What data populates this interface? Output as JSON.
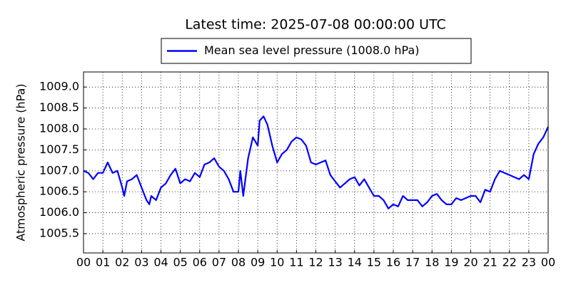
{
  "chart_data": {
    "type": "line",
    "title": "Latest time: 2025-07-08 00:00:00 UTC",
    "ylabel": "Atmospheric pressure (hPa)",
    "grid": true,
    "legend": "upper center",
    "x": [
      0,
      0.25,
      0.5,
      0.75,
      1,
      1.25,
      1.5,
      1.75,
      2,
      2.1,
      2.25,
      2.5,
      2.75,
      3,
      3.25,
      3.4,
      3.5,
      3.75,
      4,
      4.25,
      4.5,
      4.75,
      5,
      5.25,
      5.5,
      5.75,
      6,
      6.25,
      6.5,
      6.75,
      7,
      7.25,
      7.5,
      7.75,
      8,
      8.1,
      8.25,
      8.5,
      8.75,
      9,
      9.1,
      9.3,
      9.5,
      9.75,
      10,
      10.25,
      10.5,
      10.75,
      11,
      11.25,
      11.5,
      11.75,
      12,
      12.25,
      12.5,
      12.75,
      13,
      13.25,
      13.5,
      13.75,
      14,
      14.25,
      14.5,
      14.75,
      15,
      15.25,
      15.5,
      15.75,
      16,
      16.25,
      16.5,
      16.75,
      17,
      17.25,
      17.5,
      17.75,
      18,
      18.25,
      18.5,
      18.75,
      19,
      19.25,
      19.5,
      19.75,
      20,
      20.25,
      20.5,
      20.75,
      21,
      21.25,
      21.5,
      21.75,
      22,
      22.25,
      22.5,
      22.75,
      23,
      23.25,
      23.5,
      23.75,
      24
    ],
    "series": [
      {
        "name": "Mean sea level pressure (1008.0 hPa)",
        "color": "#0000ff",
        "values": [
          1007.0,
          1006.95,
          1006.8,
          1006.95,
          1006.95,
          1007.2,
          1006.95,
          1007.0,
          1006.6,
          1006.4,
          1006.75,
          1006.8,
          1006.9,
          1006.6,
          1006.3,
          1006.2,
          1006.4,
          1006.3,
          1006.6,
          1006.7,
          1006.9,
          1007.05,
          1006.7,
          1006.8,
          1006.75,
          1006.95,
          1006.85,
          1007.15,
          1007.2,
          1007.3,
          1007.1,
          1007.0,
          1006.8,
          1006.5,
          1006.5,
          1007.0,
          1006.4,
          1007.3,
          1007.8,
          1007.6,
          1008.2,
          1008.3,
          1008.1,
          1007.6,
          1007.2,
          1007.4,
          1007.5,
          1007.7,
          1007.8,
          1007.75,
          1007.6,
          1007.2,
          1007.15,
          1007.2,
          1007.25,
          1006.9,
          1006.75,
          1006.6,
          1006.7,
          1006.8,
          1006.85,
          1006.65,
          1006.8,
          1006.6,
          1006.4,
          1006.4,
          1006.3,
          1006.1,
          1006.2,
          1006.15,
          1006.4,
          1006.3,
          1006.3,
          1006.3,
          1006.15,
          1006.25,
          1006.4,
          1006.45,
          1006.3,
          1006.2,
          1006.2,
          1006.35,
          1006.3,
          1006.35,
          1006.4,
          1006.4,
          1006.25,
          1006.55,
          1006.5,
          1006.8,
          1007.0,
          1006.95,
          1006.9,
          1006.85,
          1006.8,
          1006.9,
          1006.8,
          1007.4,
          1007.65,
          1007.8,
          1008.05
        ]
      }
    ],
    "xlim": [
      0,
      24
    ],
    "xticks": [
      {
        "value": 0,
        "label": "00"
      },
      {
        "value": 1,
        "label": "01"
      },
      {
        "value": 2,
        "label": "02"
      },
      {
        "value": 3,
        "label": "03"
      },
      {
        "value": 4,
        "label": "04"
      },
      {
        "value": 5,
        "label": "05"
      },
      {
        "value": 6,
        "label": "06"
      },
      {
        "value": 7,
        "label": "07"
      },
      {
        "value": 8,
        "label": "08"
      },
      {
        "value": 9,
        "label": "09"
      },
      {
        "value": 10,
        "label": "10"
      },
      {
        "value": 11,
        "label": "11"
      },
      {
        "value": 12,
        "label": "12"
      },
      {
        "value": 13,
        "label": "13"
      },
      {
        "value": 14,
        "label": "14"
      },
      {
        "value": 15,
        "label": "15"
      },
      {
        "value": 16,
        "label": "16"
      },
      {
        "value": 17,
        "label": "17"
      },
      {
        "value": 18,
        "label": "18"
      },
      {
        "value": 19,
        "label": "19"
      },
      {
        "value": 20,
        "label": "20"
      },
      {
        "value": 21,
        "label": "21"
      },
      {
        "value": 22,
        "label": "22"
      },
      {
        "value": 23,
        "label": "23"
      },
      {
        "value": 24,
        "label": "00"
      }
    ],
    "ylim": [
      1005.04,
      1009.36
    ],
    "yticks": [
      1005.5,
      {
        "value": 1006,
        "label": "1006.0"
      },
      1006.5,
      {
        "value": 1007,
        "label": "1007.0"
      },
      1007.5,
      {
        "value": 1008,
        "label": "1008.0"
      },
      1008.5,
      {
        "value": 1009,
        "label": "1009.0"
      }
    ]
  }
}
